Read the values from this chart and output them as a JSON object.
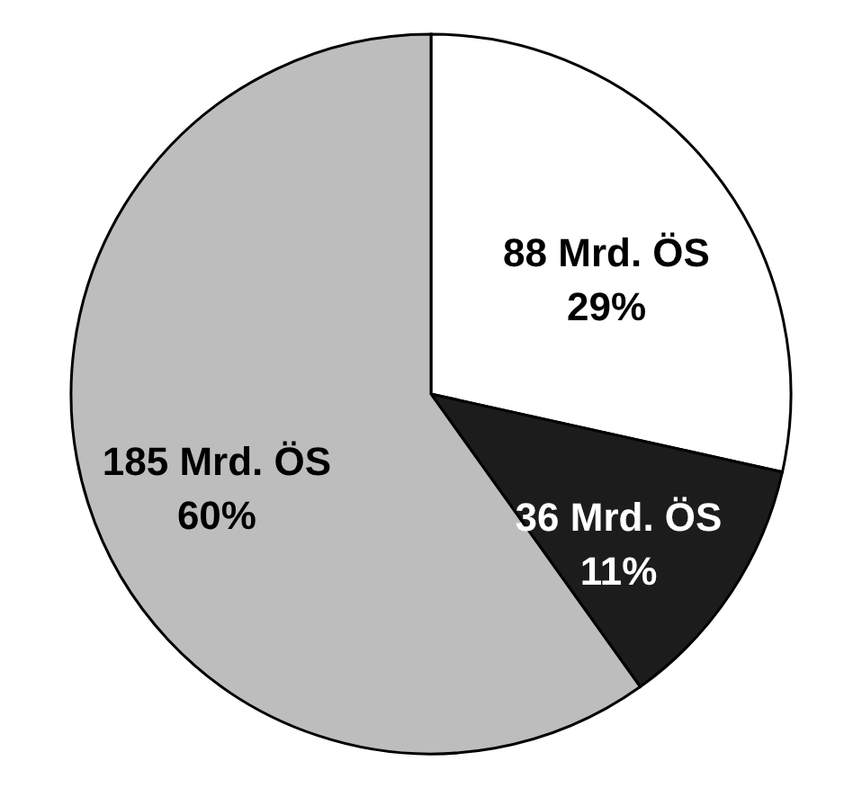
{
  "chart_data": {
    "type": "pie",
    "categories": [
      null,
      null,
      null
    ],
    "values": [
      88,
      36,
      185
    ],
    "colors": [
      "#ffffff",
      "#1c1c1c",
      "#bdbdbd"
    ],
    "value_labels": [
      "88 Mrd. ÖS\n29%",
      "36 Mrd. ÖS\n11%",
      "185 Mrd. ÖS\n60%"
    ]
  }
}
